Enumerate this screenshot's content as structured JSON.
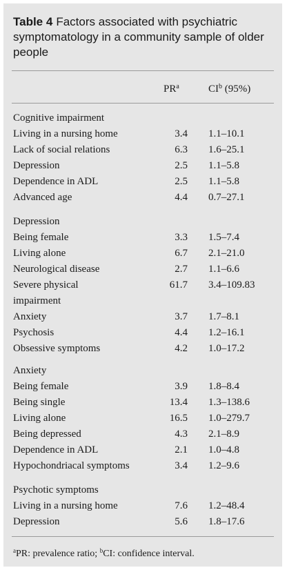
{
  "table": {
    "label": "Table 4",
    "caption": "Factors associated with psychiatric symptomatology in a community sample of older people",
    "headers": {
      "pr": "PR",
      "pr_sup": "a",
      "ci": "CI",
      "ci_sup": "b",
      "ci_suffix": " (95%)"
    },
    "groups": [
      {
        "title": "Cognitive impairment",
        "rows": [
          {
            "factor": "Living in a nursing home",
            "pr": "3.4",
            "ci": "1.1–10.1"
          },
          {
            "factor": "Lack of social relations",
            "pr": "6.3",
            "ci": "1.6–25.1"
          },
          {
            "factor": "Depression",
            "pr": "2.5",
            "ci": "1.1–5.8"
          },
          {
            "factor": "Dependence in ADL",
            "pr": "2.5",
            "ci": "1.1–5.8"
          },
          {
            "factor": "Advanced age",
            "pr": "4.4",
            "ci": "0.7–27.1"
          }
        ]
      },
      {
        "title": "Depression",
        "rows": [
          {
            "factor": "Being female",
            "pr": "3.3",
            "ci": "1.5–7.4"
          },
          {
            "factor": "Living alone",
            "pr": "6.7",
            "ci": "2.1–21.0"
          },
          {
            "factor": "Neurological disease",
            "pr": "2.7",
            "ci": "1.1–6.6"
          },
          {
            "factor": "Severe physical",
            "factor_line2": "impairment",
            "pr": "61.7",
            "ci": "3.4–109.83"
          },
          {
            "factor": "Anxiety",
            "pr": "3.7",
            "ci": "1.7–8.1"
          },
          {
            "factor": "Psychosis",
            "pr": "4.4",
            "ci": "1.2–16.1"
          },
          {
            "factor": "Obsessive symptoms",
            "pr": "4.2",
            "ci": "1.0–17.2"
          }
        ]
      },
      {
        "title": "Anxiety",
        "rows": [
          {
            "factor": "Being female",
            "pr": "3.9",
            "ci": "1.8–8.4"
          },
          {
            "factor": "Being single",
            "pr": "13.4",
            "ci": "1.3–138.6"
          },
          {
            "factor": "Living alone",
            "pr": "16.5",
            "ci": "1.0–279.7"
          },
          {
            "factor": "Being depressed",
            "pr": "4.3",
            "ci": "2.1–8.9"
          },
          {
            "factor": "Dependence in ADL",
            "pr": "2.1",
            "ci": "1.0–4.8"
          },
          {
            "factor": "Hypochondriacal symptoms",
            "pr": "3.4",
            "ci": "1.2–9.6"
          }
        ]
      },
      {
        "title": "Psychotic symptoms",
        "rows": [
          {
            "factor": "Living in a nursing home",
            "pr": "7.6",
            "ci": "1.2–48.4"
          },
          {
            "factor": "Depression",
            "pr": "5.6",
            "ci": "1.8–17.6"
          }
        ]
      }
    ],
    "footnote": {
      "a_mark": "a",
      "a_text": "PR: prevalence ratio; ",
      "b_mark": "b",
      "b_text": "CI: confidence interval."
    }
  }
}
